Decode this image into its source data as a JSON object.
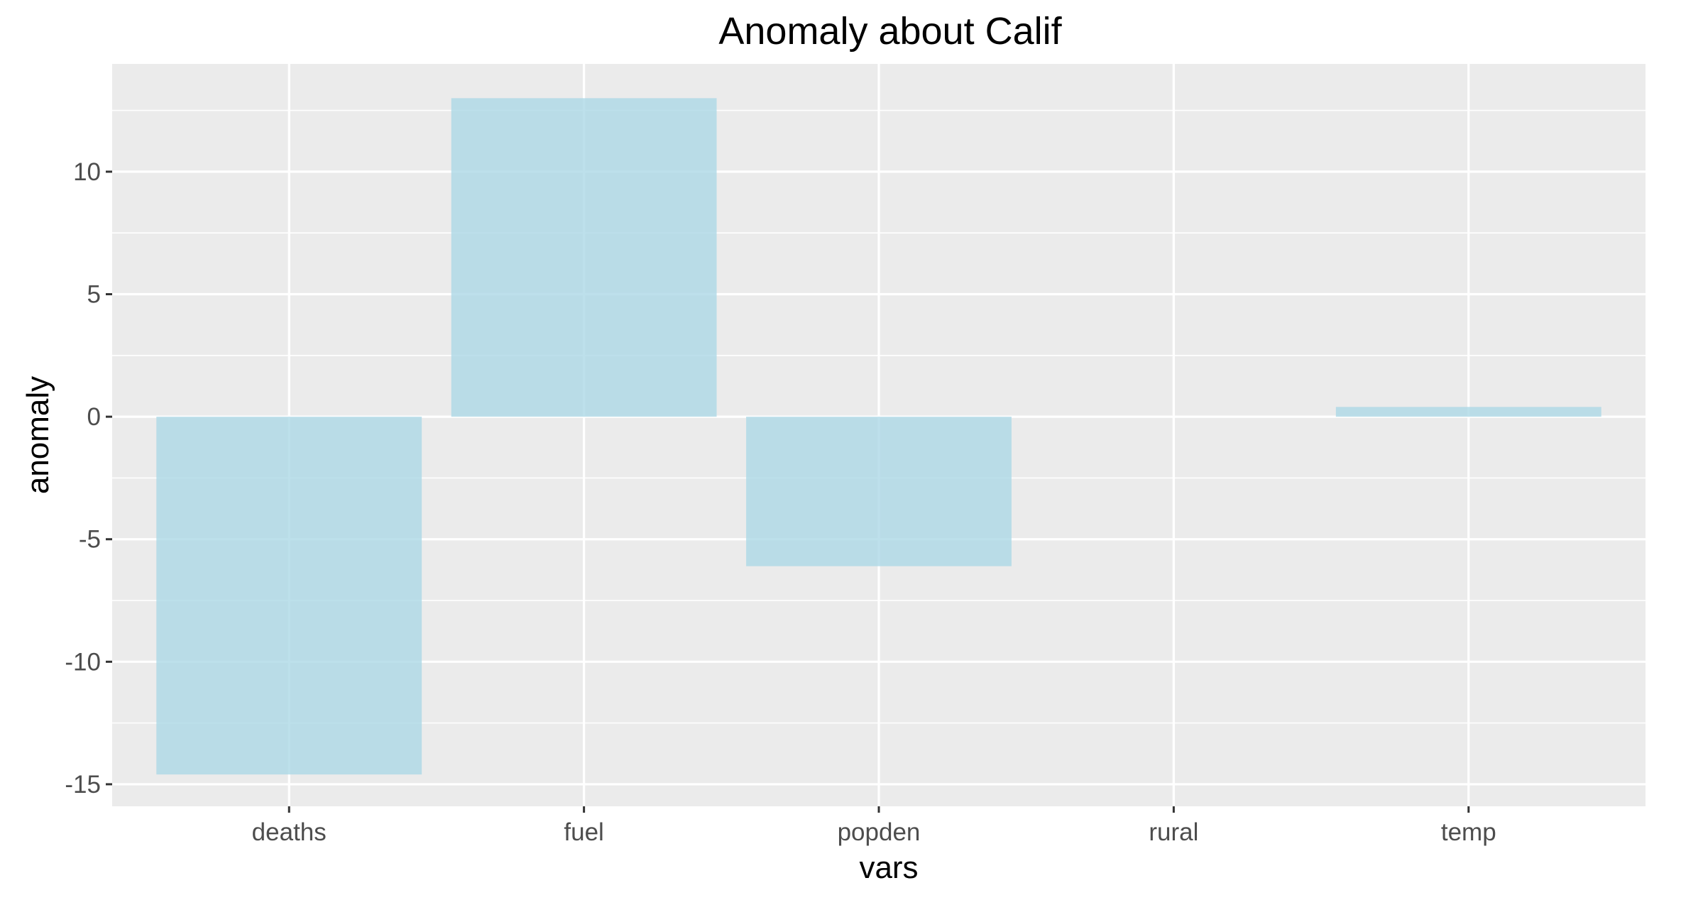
{
  "chart_data": {
    "type": "bar",
    "title": "Anomaly about Calif",
    "xlabel": "vars",
    "ylabel": "anomaly",
    "categories": [
      "deaths",
      "fuel",
      "popden",
      "rural",
      "temp"
    ],
    "values": [
      -14.6,
      13.0,
      -6.1,
      0.0,
      0.4
    ],
    "ylim": [
      -15.9,
      14.4
    ],
    "yticks": [
      -15,
      -10,
      -5,
      0,
      5,
      10
    ],
    "ytick_labels": [
      "-15",
      "-10",
      "-5",
      "0",
      "5",
      "10"
    ],
    "grid": true,
    "legend": "none",
    "colors": {
      "bar": "#ADD8E6",
      "panel": "#EBEBEB",
      "grid": "#FFFFFF",
      "tick": "#333333"
    }
  }
}
